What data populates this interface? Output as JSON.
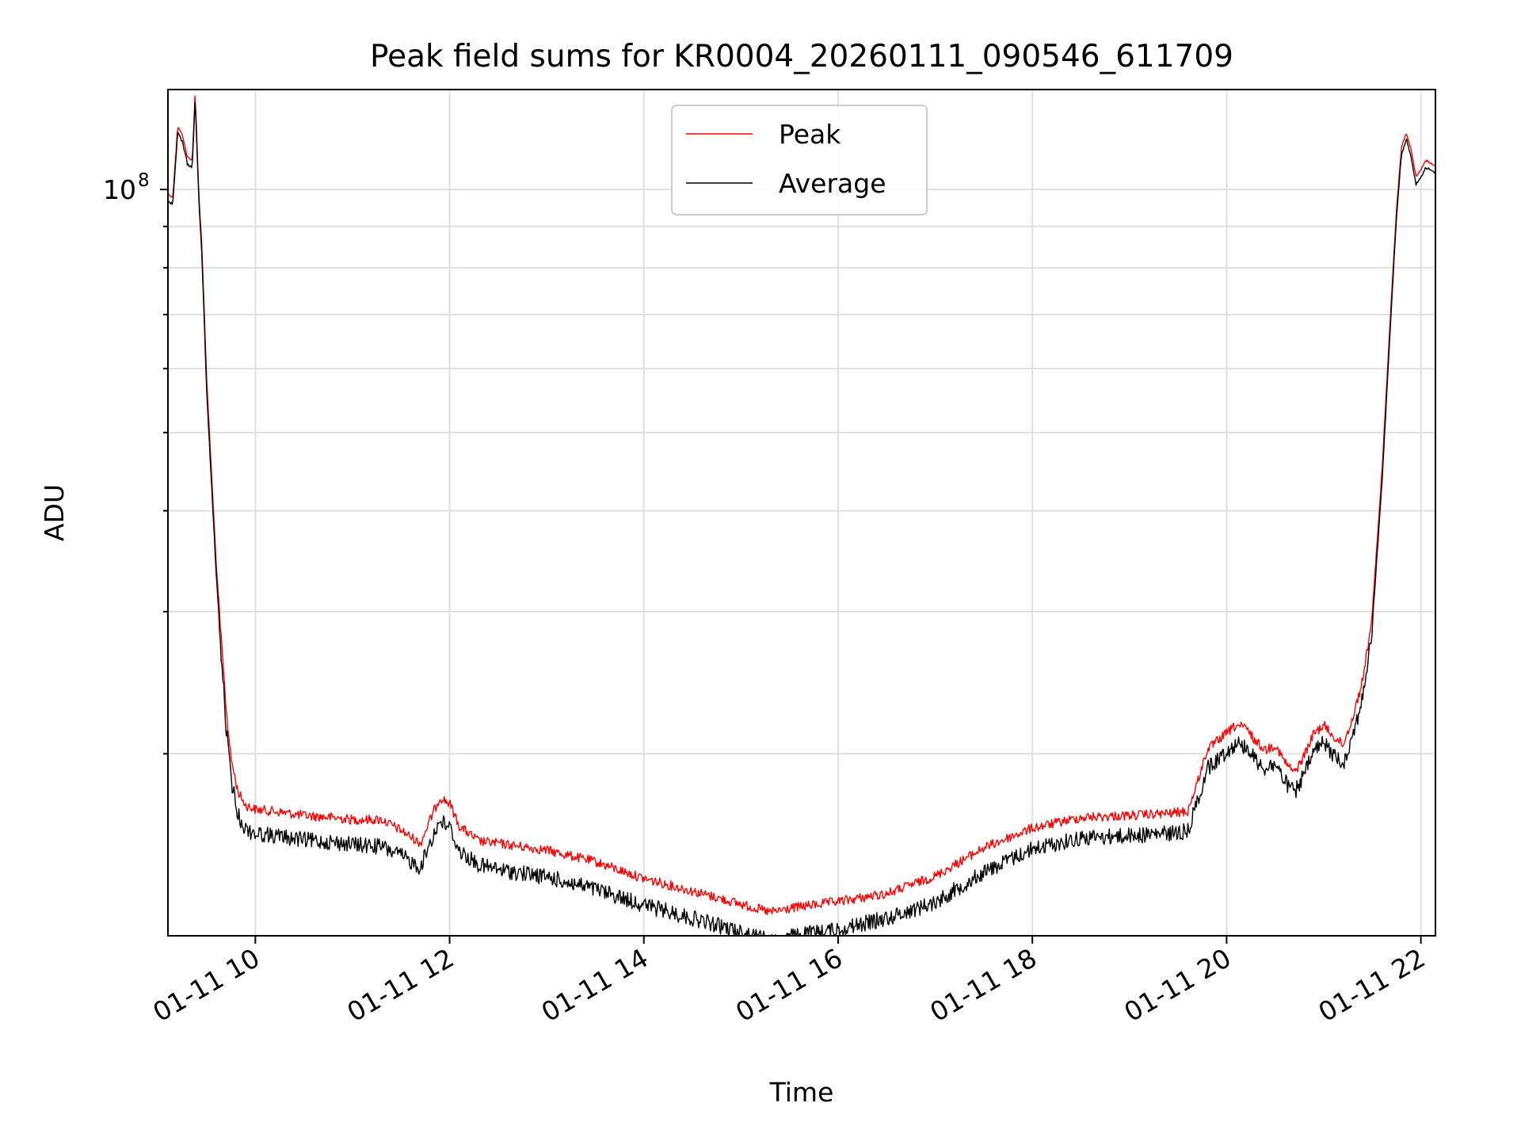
{
  "chart_data": {
    "type": "line",
    "title": "Peak field sums for KR0004_20260111_090546_611709",
    "xlabel": "Time",
    "ylabel": "ADU",
    "yscale": "log",
    "xlim": [
      9.1,
      22.15
    ],
    "ylim": [
      11900000,
      133000000
    ],
    "x_ticks": [
      {
        "value": 10,
        "label": "01-11 10"
      },
      {
        "value": 12,
        "label": "01-11 12"
      },
      {
        "value": 14,
        "label": "01-11 14"
      },
      {
        "value": 16,
        "label": "01-11 16"
      },
      {
        "value": 18,
        "label": "01-11 18"
      },
      {
        "value": 20,
        "label": "01-11 20"
      },
      {
        "value": 22,
        "label": "01-11 22"
      }
    ],
    "y_major_ticks": [
      {
        "value": 100000000,
        "base": "10",
        "exp": "8"
      }
    ],
    "y_minor_ticks": [
      20000000,
      30000000,
      40000000,
      50000000,
      60000000,
      70000000,
      80000000,
      90000000
    ],
    "grid": true,
    "legend_position": "top-center",
    "series": [
      {
        "name": "Peak",
        "color": "#ff0000",
        "x": [
          9.1,
          9.15,
          9.2,
          9.25,
          9.3,
          9.35,
          9.38,
          9.42,
          9.45,
          9.5,
          9.6,
          9.7,
          9.75,
          9.82,
          9.9,
          10.0,
          10.2,
          10.5,
          10.8,
          11.0,
          11.3,
          11.5,
          11.7,
          11.8,
          11.9,
          12.0,
          12.1,
          12.3,
          12.5,
          13.0,
          13.5,
          14.0,
          14.5,
          15.0,
          15.3,
          15.6,
          16.0,
          16.5,
          17.0,
          17.5,
          18.0,
          18.5,
          19.0,
          19.4,
          19.6,
          19.7,
          19.8,
          19.9,
          20.0,
          20.1,
          20.2,
          20.3,
          20.4,
          20.5,
          20.6,
          20.7,
          20.8,
          20.9,
          21.0,
          21.1,
          21.2,
          21.3,
          21.4,
          21.5,
          21.6,
          21.7,
          21.75,
          21.8,
          21.85,
          21.9,
          21.95,
          22.0,
          22.05,
          22.1,
          22.15
        ],
        "y": [
          99000000,
          98000000,
          120000000,
          117000000,
          110000000,
          109000000,
          132000000,
          98000000,
          85000000,
          58000000,
          34000000,
          23000000,
          20000000,
          18200000,
          17500000,
          17300000,
          17200000,
          17000000,
          16900000,
          16800000,
          16800000,
          16300000,
          15700000,
          16800000,
          17900000,
          17600000,
          16500000,
          15800000,
          15700000,
          15400000,
          14900000,
          14200000,
          13700000,
          13200000,
          12900000,
          13100000,
          13300000,
          13600000,
          14300000,
          15500000,
          16400000,
          16900000,
          17000000,
          17100000,
          17200000,
          18700000,
          20500000,
          21000000,
          21500000,
          22000000,
          21800000,
          21000000,
          20500000,
          20800000,
          19800000,
          19200000,
          20200000,
          21500000,
          22000000,
          21300000,
          20800000,
          22500000,
          25000000,
          30000000,
          45000000,
          75000000,
          95000000,
          113000000,
          118000000,
          112000000,
          104000000,
          106000000,
          109000000,
          108000000,
          107000000
        ]
      },
      {
        "name": "Average",
        "color": "#000000",
        "x": [
          9.1,
          9.15,
          9.2,
          9.25,
          9.3,
          9.35,
          9.38,
          9.42,
          9.45,
          9.5,
          9.6,
          9.7,
          9.75,
          9.82,
          9.9,
          10.0,
          10.2,
          10.5,
          10.8,
          11.0,
          11.3,
          11.5,
          11.7,
          11.8,
          11.9,
          12.0,
          12.1,
          12.3,
          12.5,
          13.0,
          13.5,
          14.0,
          14.5,
          15.0,
          15.3,
          15.6,
          16.0,
          16.5,
          17.0,
          17.5,
          18.0,
          18.5,
          19.0,
          19.4,
          19.6,
          19.7,
          19.8,
          19.9,
          20.0,
          20.1,
          20.2,
          20.3,
          20.4,
          20.5,
          20.6,
          20.7,
          20.8,
          20.9,
          21.0,
          21.1,
          21.2,
          21.3,
          21.4,
          21.5,
          21.6,
          21.7,
          21.75,
          21.8,
          21.85,
          21.9,
          21.95,
          22.0,
          22.05,
          22.1,
          22.15
        ],
        "y": [
          97000000,
          96500000,
          118000000,
          115000000,
          108000000,
          107000000,
          130000000,
          96000000,
          83000000,
          56000000,
          33000000,
          22000000,
          19000000,
          17200000,
          16500000,
          16300000,
          16200000,
          16000000,
          15900000,
          15800000,
          15700000,
          15300000,
          14800000,
          15900000,
          16900000,
          16600000,
          15500000,
          14900000,
          14700000,
          14400000,
          13900000,
          13300000,
          12800000,
          12300000,
          12000000,
          12200000,
          12400000,
          12800000,
          13400000,
          14600000,
          15600000,
          16100000,
          16200000,
          16300000,
          16400000,
          17900000,
          19600000,
          20100000,
          20600000,
          21100000,
          20900000,
          20100000,
          19600000,
          19900000,
          18900000,
          18300000,
          19300000,
          20600000,
          21100000,
          20400000,
          19900000,
          21600000,
          24000000,
          29000000,
          43500000,
          73000000,
          93000000,
          111000000,
          116000000,
          110000000,
          102000000,
          104000000,
          107000000,
          106000000,
          105000000
        ]
      }
    ]
  }
}
